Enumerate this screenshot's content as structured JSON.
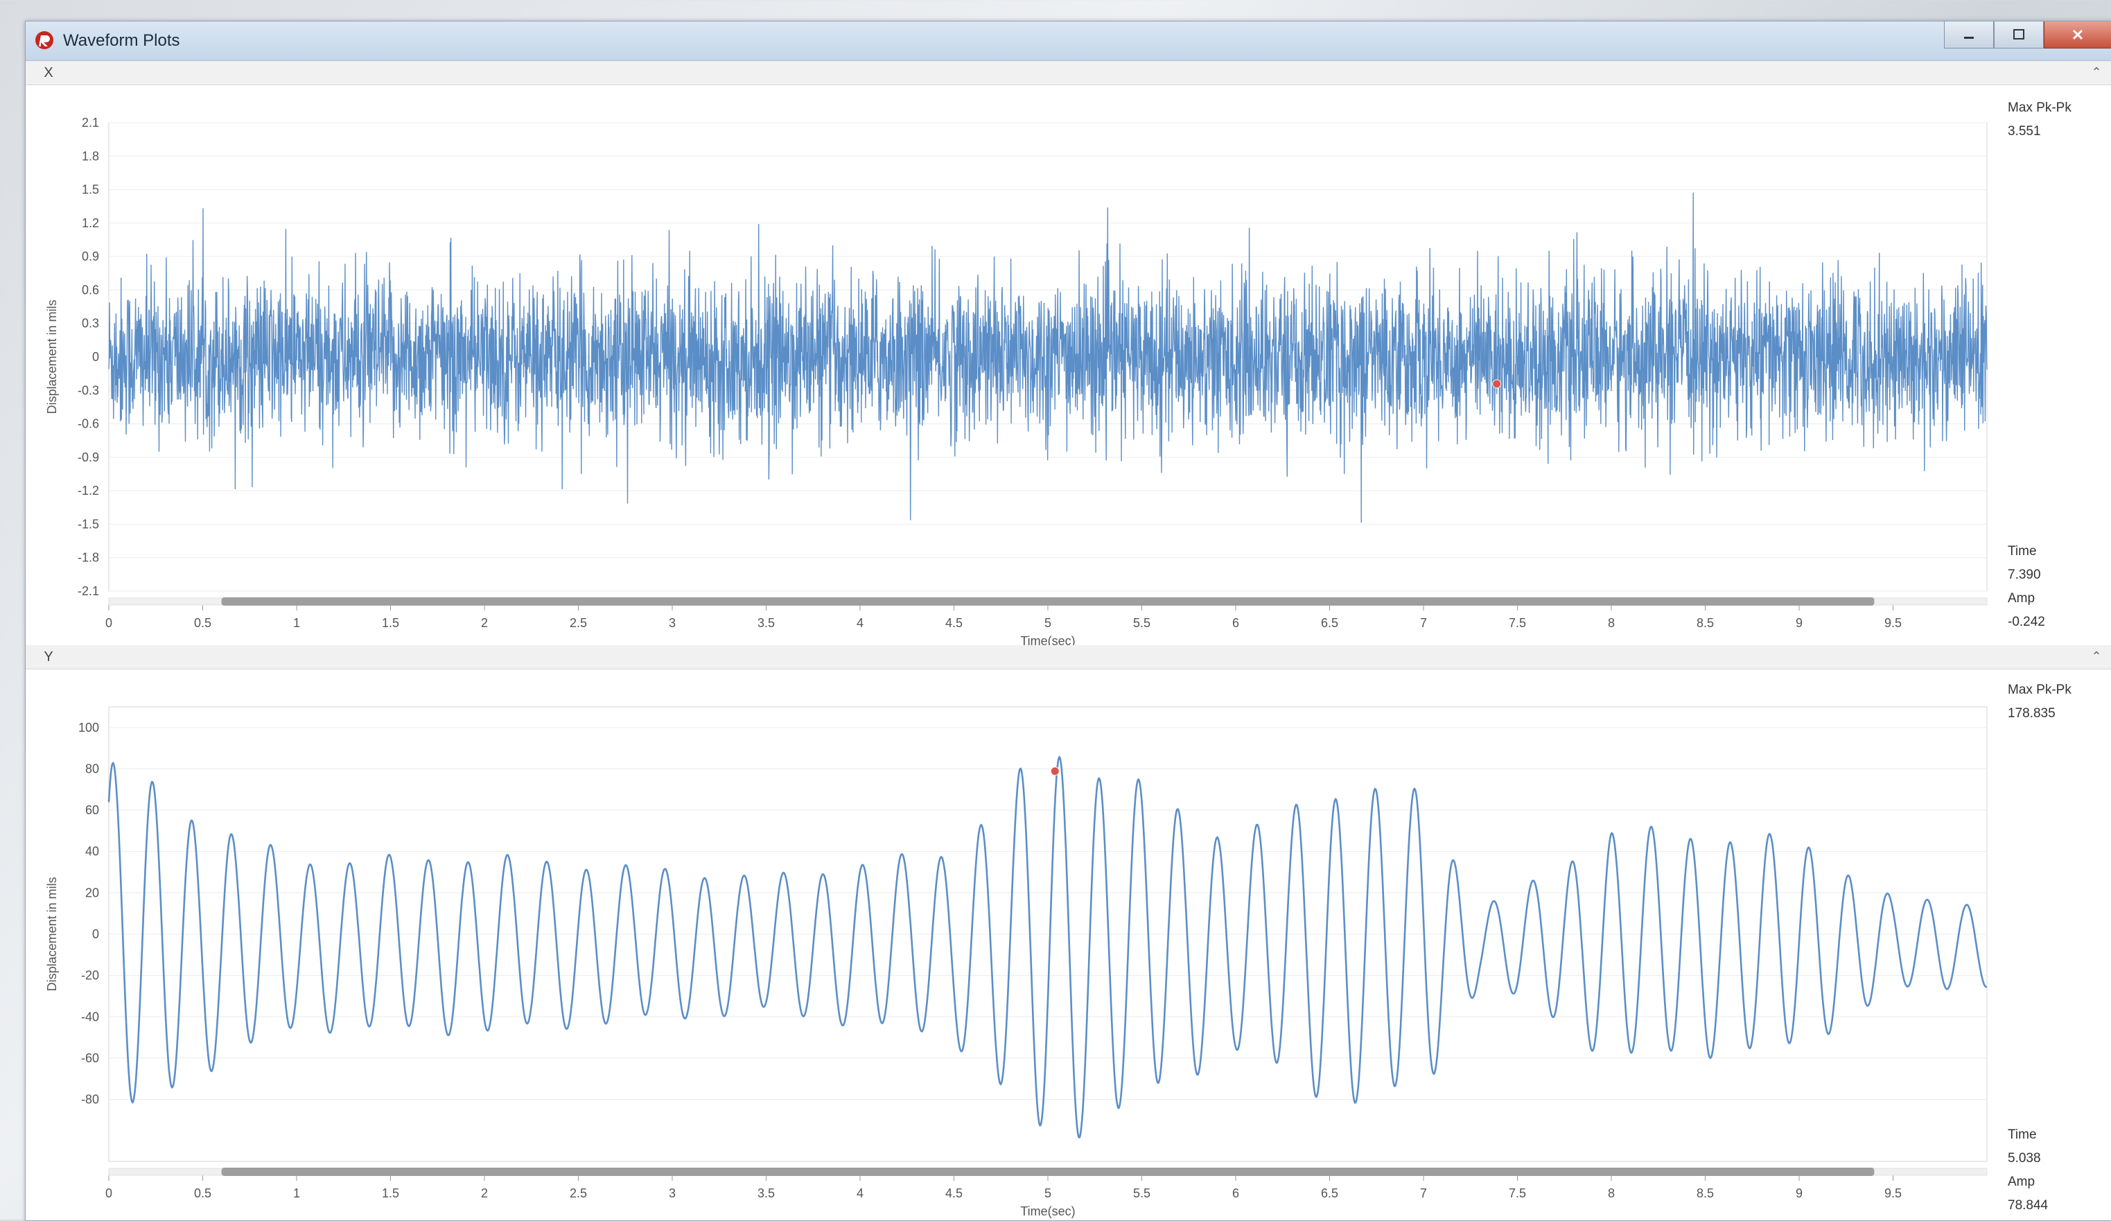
{
  "window": {
    "title": "Waveform Plots"
  },
  "panel_x": {
    "toolbar_icon": "X",
    "stats": {
      "max_label": "Max Pk-Pk",
      "max_value": "3.551",
      "time_label": "Time",
      "time_value": "7.390",
      "amp_label": "Amp",
      "amp_value": "-0.242"
    }
  },
  "panel_y": {
    "toolbar_icon": "Y",
    "stats": {
      "max_label": "Max Pk-Pk",
      "max_value": "178.835",
      "time_label": "Time",
      "time_value": "5.038",
      "amp_label": "Amp",
      "amp_value": "78.844"
    }
  },
  "chart_data": [
    {
      "type": "line",
      "title": "",
      "xlabel": "Time(sec)",
      "ylabel": "Displacement in mils",
      "xlim": [
        0,
        10
      ],
      "ylim": [
        -2.1,
        2.1
      ],
      "x_ticks": [
        "0",
        "0.5",
        "1",
        "1.5",
        "2",
        "2.5",
        "3",
        "3.5",
        "4",
        "4.5",
        "5",
        "5.5",
        "6",
        "6.5",
        "7",
        "7.5",
        "8",
        "8.5",
        "9",
        "9.5"
      ],
      "y_ticks": [
        "2.1",
        "1.8",
        "1.5",
        "1.2",
        "0.9",
        "0.6",
        "0.3",
        "0",
        "-0.3",
        "-0.6",
        "-0.9",
        "-1.2",
        "-1.5",
        "-1.8",
        "-2.1"
      ],
      "series": [
        {
          "signal": "broadband noise",
          "rms": 0.35,
          "approx_range": [
            -1.8,
            1.8
          ],
          "color": "#5b8ec7"
        }
      ],
      "cursor": {
        "x": 7.39,
        "y": -0.242,
        "color": "#d9534f"
      },
      "grid": true,
      "scrollbar": {
        "visible_range": [
          0.6,
          9.4
        ]
      }
    },
    {
      "type": "line",
      "title": "",
      "xlabel": "Time(sec)",
      "ylabel": "Displacement in mils",
      "xlim": [
        0,
        10
      ],
      "ylim": [
        -110,
        110
      ],
      "x_ticks": [
        "0",
        "0.5",
        "1",
        "1.5",
        "2",
        "2.5",
        "3",
        "3.5",
        "4",
        "4.5",
        "5",
        "5.5",
        "6",
        "6.5",
        "7",
        "7.5",
        "8",
        "8.5",
        "9",
        "9.5"
      ],
      "y_ticks": [
        "100",
        "80",
        "60",
        "40",
        "20",
        "0",
        "-20",
        "-40",
        "-60",
        "-80"
      ],
      "series": [
        {
          "signal": "oscillation",
          "period_sec": 0.21,
          "peak_envelope": [
            [
              0,
              88
            ],
            [
              0.5,
              60
            ],
            [
              1,
              40
            ],
            [
              2,
              42
            ],
            [
              3.5,
              32
            ],
            [
              4.5,
              45
            ],
            [
              5,
              95
            ],
            [
              5.5,
              75
            ],
            [
              6,
              50
            ],
            [
              6.5,
              75
            ],
            [
              7,
              72
            ],
            [
              7.3,
              18
            ],
            [
              7.6,
              30
            ],
            [
              8,
              55
            ],
            [
              8.5,
              52
            ],
            [
              9,
              50
            ],
            [
              9.5,
              22
            ],
            [
              10,
              20
            ]
          ],
          "color": "#5b8ec7"
        }
      ],
      "cursor": {
        "x": 5.038,
        "y": 78.844,
        "color": "#d9534f"
      },
      "grid": true,
      "scrollbar": {
        "visible_range": [
          0.6,
          9.4
        ]
      }
    }
  ]
}
